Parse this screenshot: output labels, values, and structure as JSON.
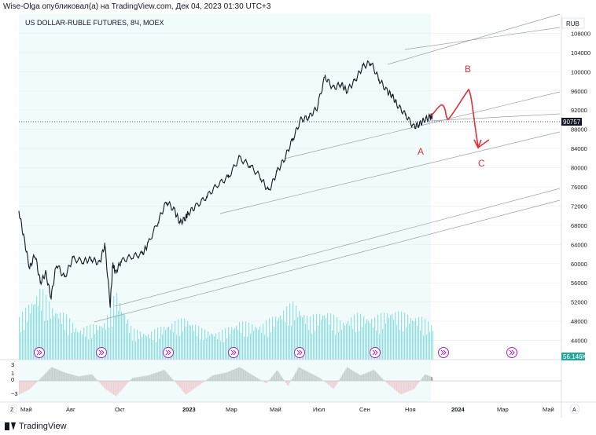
{
  "header": {
    "publisher_line": "Wise-Olga опубликовал(а) на TradingView.com, Дек 04, 2023 01:30 UTC+3"
  },
  "footer": {
    "brand": "TradingView"
  },
  "colors": {
    "accent_red": "#e0303c",
    "price_line": "#131722",
    "volume": "#48c9c9",
    "grid": "#e6eef0",
    "osc_pos": "#9e9e9e",
    "osc_neg": "#f3a3a6"
  },
  "chart_data": {
    "type": "line",
    "title": "US DOLLAR-RUBLE FUTURES, 8Ч, MOEX",
    "currency": "RUB",
    "last_price": "90757",
    "volume_label": "56.146K",
    "ylim": [
      40000,
      112000
    ],
    "y_ticks": [
      44000,
      48000,
      52000,
      56000,
      60000,
      64000,
      68000,
      72000,
      76000,
      80000,
      84000,
      88000,
      92000,
      96000,
      100000,
      104000,
      108000
    ],
    "x_tick_labels": [
      "Май",
      "Авг",
      "Окт",
      "2023",
      "Мар",
      "Май",
      "Июл",
      "Сен",
      "Ноя",
      "2024",
      "Мар",
      "Май"
    ],
    "x_range": [
      2022.38,
      2024.4
    ],
    "series": [
      {
        "name": "price",
        "x": [
          2022.38,
          2022.4,
          2022.42,
          2022.44,
          2022.46,
          2022.48,
          2022.5,
          2022.52,
          2022.55,
          2022.58,
          2022.62,
          2022.65,
          2022.68,
          2022.7,
          2022.72,
          2022.73,
          2022.74,
          2022.76,
          2022.8,
          2022.84,
          2022.86,
          2022.9,
          2022.93,
          2022.96,
          2022.98,
          2023.0,
          2023.01,
          2023.04,
          2023.08,
          2023.12,
          2023.16,
          2023.2,
          2023.24,
          2023.28,
          2023.31,
          2023.34,
          2023.37,
          2023.4,
          2023.43,
          2023.46,
          2023.49,
          2023.52,
          2023.55,
          2023.58,
          2023.6,
          2023.63,
          2023.66,
          2023.69,
          2023.72,
          2023.75,
          2023.77,
          2023.79,
          2023.82,
          2023.85,
          2023.87,
          2023.89,
          2023.91,
          2023.92
        ],
        "values": [
          71000,
          65000,
          59000,
          62000,
          56000,
          58000,
          53000,
          60000,
          57000,
          61000,
          60500,
          61000,
          60000,
          64000,
          51500,
          60000,
          58000,
          60500,
          61500,
          62000,
          64000,
          69000,
          73000,
          71000,
          68500,
          69500,
          70500,
          72000,
          74000,
          76500,
          78000,
          82000,
          80500,
          78000,
          75000,
          79000,
          82000,
          86000,
          90000,
          90500,
          92500,
          99000,
          96500,
          97500,
          96000,
          98000,
          101000,
          102000,
          98500,
          96000,
          95000,
          93000,
          91000,
          88500,
          89000,
          90000,
          90500,
          90757
        ]
      }
    ],
    "volume_series": {
      "x": [
        2022.38,
        2022.42,
        2022.46,
        2022.5,
        2022.55,
        2022.6,
        2022.65,
        2022.7,
        2022.74,
        2022.8,
        2022.86,
        2022.92,
        2023.0,
        2023.06,
        2023.12,
        2023.2,
        2023.28,
        2023.34,
        2023.4,
        2023.46,
        2023.52,
        2023.58,
        2023.64,
        2023.7,
        2023.76,
        2023.82,
        2023.88,
        2023.92
      ],
      "values": [
        55,
        75,
        95,
        70,
        60,
        40,
        45,
        50,
        90,
        40,
        35,
        45,
        55,
        40,
        35,
        50,
        45,
        60,
        75,
        55,
        65,
        50,
        60,
        55,
        65,
        60,
        55,
        45
      ]
    },
    "oscillator": {
      "y_ticks": [
        "3",
        "1",
        "0",
        "−3"
      ],
      "x": [
        2022.38,
        2022.42,
        2022.46,
        2022.5,
        2022.55,
        2022.6,
        2022.65,
        2022.7,
        2022.74,
        2022.8,
        2022.86,
        2022.92,
        2023.0,
        2023.05,
        2023.1,
        2023.15,
        2023.2,
        2023.25,
        2023.3,
        2023.34,
        2023.38,
        2023.42,
        2023.46,
        2023.5,
        2023.55,
        2023.6,
        2023.65,
        2023.7,
        2023.75,
        2023.8,
        2023.85,
        2023.89,
        2023.92
      ],
      "values": [
        -2.5,
        -1.5,
        0.5,
        2.5,
        1.5,
        0.8,
        1.2,
        -1.5,
        -2.8,
        0.5,
        1.0,
        2.0,
        -2.5,
        -0.8,
        1.0,
        1.5,
        2.5,
        1.0,
        -0.5,
        2.0,
        -1.0,
        2.5,
        1.5,
        0.5,
        -1.5,
        2.5,
        1.0,
        2.0,
        -0.5,
        -2.5,
        -1.5,
        1.2,
        0.6
      ]
    },
    "annotations": [
      "A",
      "B",
      "C"
    ]
  }
}
